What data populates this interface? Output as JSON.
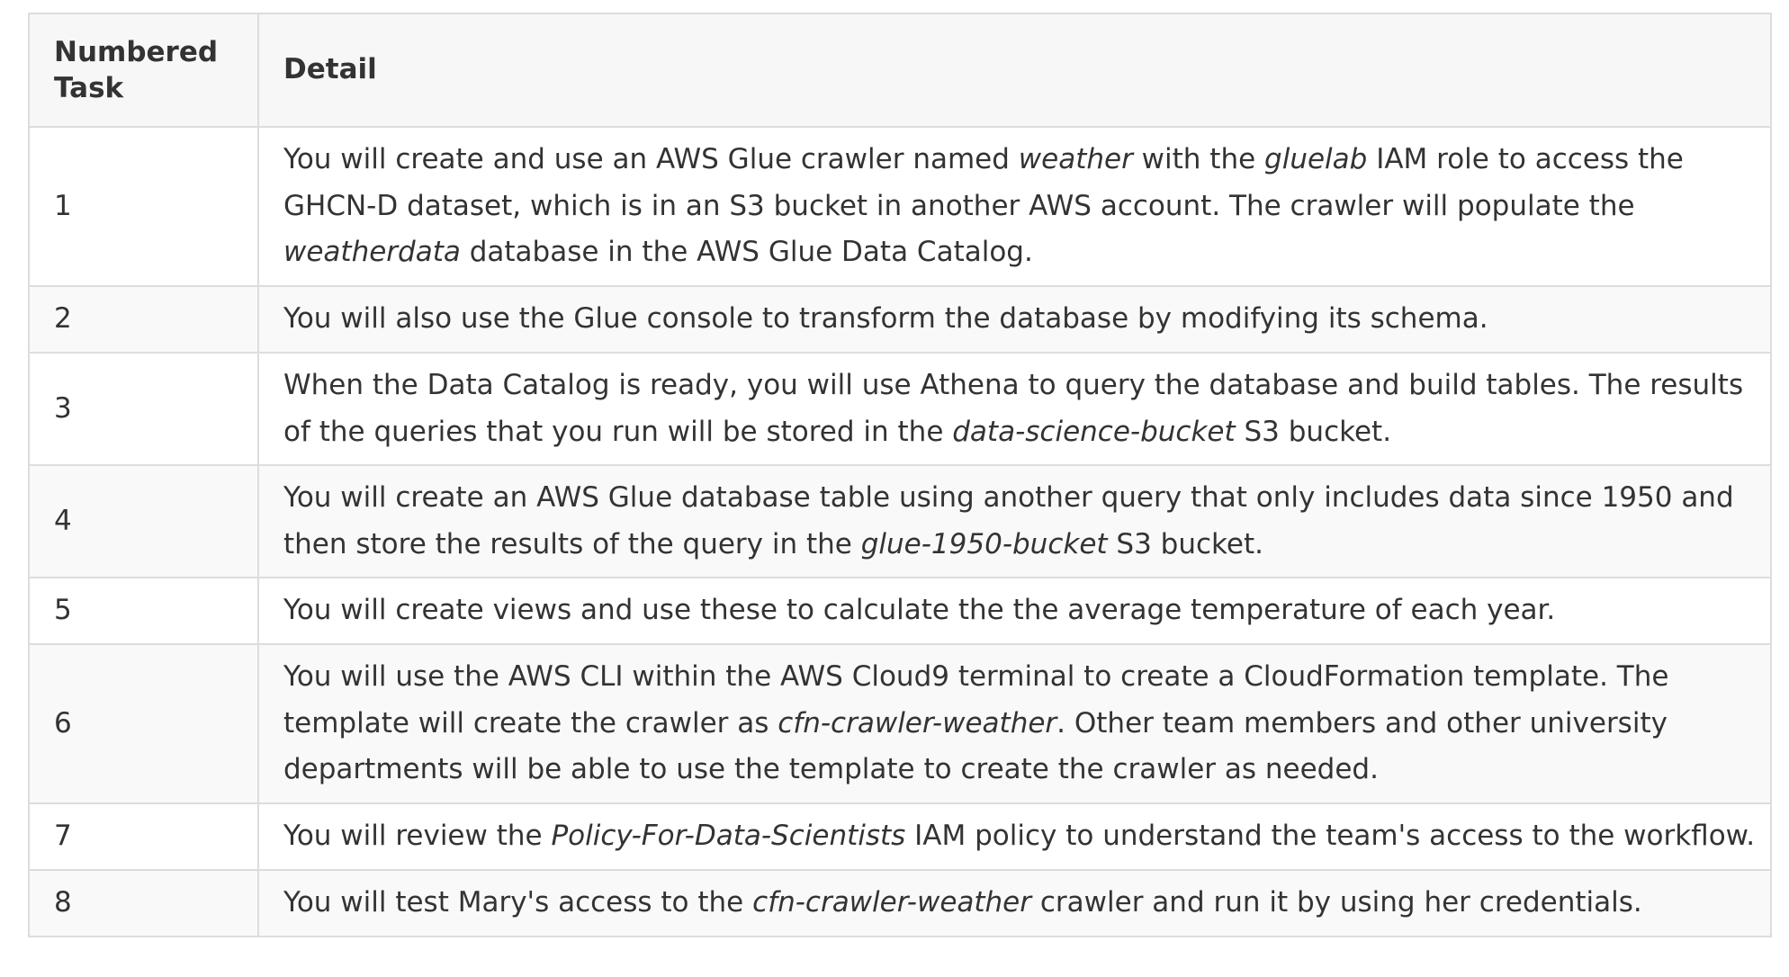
{
  "table": {
    "headers": [
      "Numbered Task",
      "Detail"
    ],
    "rows": [
      {
        "number": "1",
        "detail": [
          {
            "text": "You will create and use an AWS Glue crawler named "
          },
          {
            "text": "weather",
            "italic": true
          },
          {
            "text": " with the "
          },
          {
            "text": "gluelab",
            "italic": true
          },
          {
            "text": " IAM role to access the GHCN-D dataset, which is in an S3 bucket in another AWS account. The crawler will populate the "
          },
          {
            "text": "weatherdata",
            "italic": true
          },
          {
            "text": " database in the AWS Glue Data Catalog."
          }
        ]
      },
      {
        "number": "2",
        "detail": [
          {
            "text": "You will also use the Glue console to transform the database by modifying its schema."
          }
        ]
      },
      {
        "number": "3",
        "detail": [
          {
            "text": "When the Data Catalog is ready, you will use Athena to query the database and build tables. The results of the queries that you run will be stored in the "
          },
          {
            "text": "data-science-bucket",
            "italic": true
          },
          {
            "text": " S3 bucket."
          }
        ]
      },
      {
        "number": "4",
        "detail": [
          {
            "text": "You will create an AWS Glue database table using another query that only includes data since 1950 and then store the results of the query in the "
          },
          {
            "text": "glue-1950-bucket",
            "italic": true
          },
          {
            "text": " S3 bucket."
          }
        ]
      },
      {
        "number": "5",
        "detail": [
          {
            "text": "You will create views and use these to calculate the the average temperature of each year."
          }
        ]
      },
      {
        "number": "6",
        "detail": [
          {
            "text": "You will use the AWS CLI within the AWS Cloud9 terminal to create a CloudFormation template. The template will create the crawler as "
          },
          {
            "text": "cfn-crawler-weather",
            "italic": true
          },
          {
            "text": ". Other team members and other university departments will be able to use the template to create the crawler as needed."
          }
        ]
      },
      {
        "number": "7",
        "detail": [
          {
            "text": "You will review the "
          },
          {
            "text": "Policy-For-Data-Scientists",
            "italic": true
          },
          {
            "text": " IAM policy to understand the team's access to the workflow."
          }
        ]
      },
      {
        "number": "8",
        "detail": [
          {
            "text": "You will test Mary's access to the "
          },
          {
            "text": "cfn-crawler-weather",
            "italic": true
          },
          {
            "text": " crawler and run it by using her credentials."
          }
        ]
      }
    ]
  }
}
